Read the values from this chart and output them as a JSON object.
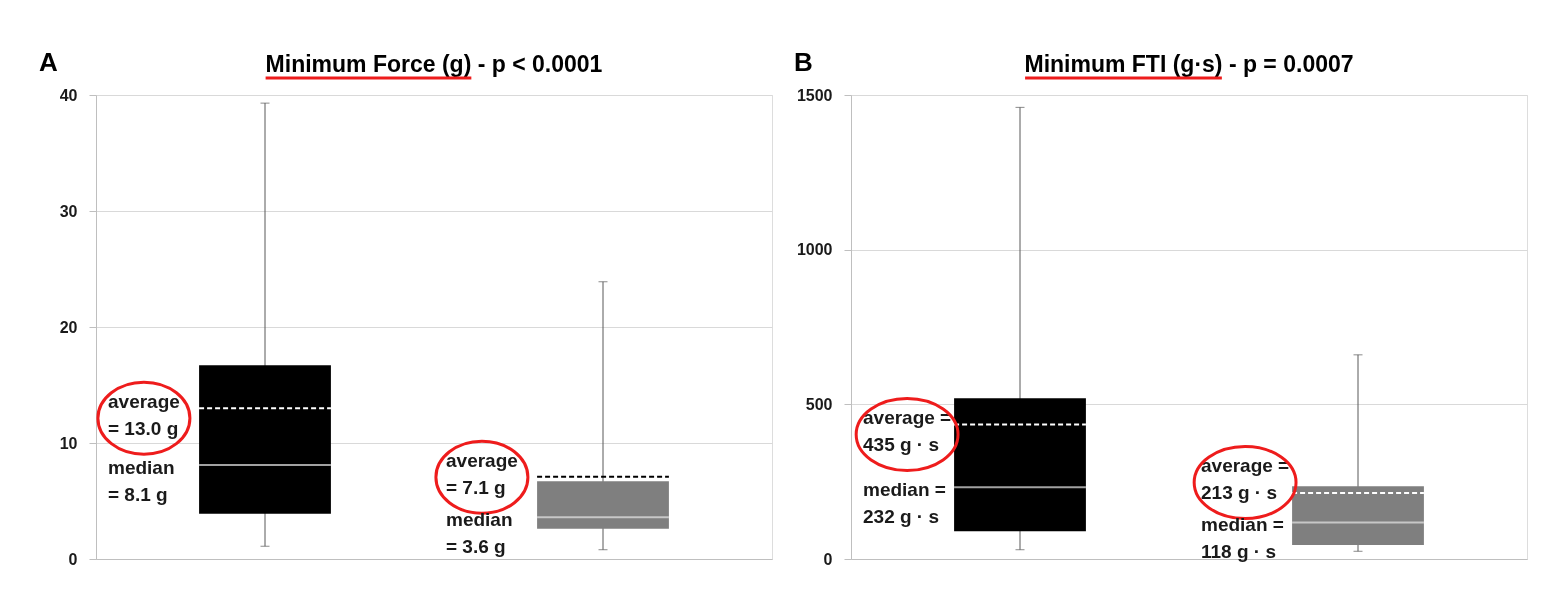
{
  "chart_data": [
    {
      "type": "box",
      "title": "Minimum Force (g) - p < 0.0001",
      "categories": [
        null,
        null
      ],
      "colors": [
        "#000000",
        "#7f7f7f"
      ],
      "boxes": [
        {
          "low": 1.1,
          "q1": 3.9,
          "median": 8.1,
          "q3": 16.7,
          "high": 39.3,
          "mean": 13.0
        },
        {
          "low": 0.8,
          "q1": 2.6,
          "median": 3.6,
          "q3": 6.7,
          "high": 23.9,
          "mean": 7.1
        }
      ],
      "ylim": [
        0,
        40
      ],
      "yticks": [
        0,
        10,
        20,
        30,
        40
      ],
      "grid": "y",
      "tick_labels": "y",
      "annotations": [
        "A",
        "average\n= 13.0 g",
        "median\n= 8.1 g",
        "average\n= 7.1 g",
        "median\n= 3.6 g"
      ]
    },
    {
      "type": "box",
      "title": "Minimum FTI (g·s) - p = 0.0007",
      "categories": [
        null,
        null
      ],
      "colors": [
        "#000000",
        "#7f7f7f"
      ],
      "boxes": [
        {
          "low": 30,
          "q1": 90,
          "median": 232,
          "q3": 520,
          "high": 1460,
          "mean": 435
        },
        {
          "low": 25,
          "q1": 45,
          "median": 118,
          "q3": 235,
          "high": 660,
          "mean": 213
        }
      ],
      "ylim": [
        0,
        1500
      ],
      "yticks": [
        0,
        500,
        1000,
        1500
      ],
      "grid": "y",
      "tick_labels": "y",
      "annotations": [
        "B",
        "average =\n435 g · s",
        "median =\n232 g · s",
        "average =\n213 g · s",
        "median =\n118 g · s"
      ]
    }
  ]
}
